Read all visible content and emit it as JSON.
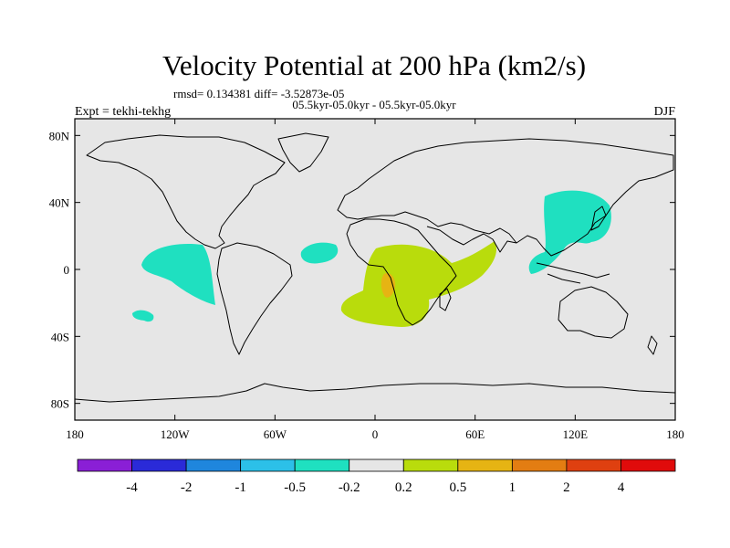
{
  "chart_data": {
    "type": "heatmap",
    "title": "Velocity Potential at 200 hPa (km2/s)",
    "stats": "rmsd= 0.134381 diff= -3.52873e-05",
    "subtitle": "05.5kyr-05.0kyr - 05.5kyr-05.0kyr",
    "left_label": "Expt = tekhi-tekhg",
    "right_label": "DJF",
    "x_axis": {
      "range": [
        -180,
        180
      ],
      "ticks": [
        -180,
        -120,
        -60,
        0,
        60,
        120,
        180
      ],
      "tick_labels": [
        "180",
        "120W",
        "60W",
        "0",
        "60E",
        "120E",
        "180"
      ]
    },
    "y_axis": {
      "range": [
        -90,
        90
      ],
      "ticks": [
        80,
        40,
        0,
        -40,
        -80
      ],
      "tick_labels": [
        "80N",
        "40N",
        "0",
        "40S",
        "80S"
      ]
    },
    "colorbar": {
      "boundaries": [
        "-4",
        "-2",
        "-1",
        "-0.5",
        "-0.2",
        "0.2",
        "0.5",
        "1",
        "2",
        "4"
      ],
      "colors": [
        "#8a1fd6",
        "#2a2ad8",
        "#1f86dd",
        "#2cc0e8",
        "#1fe0c0",
        "#e6e6e6",
        "#b9dc0c",
        "#e6b413",
        "#e37d12",
        "#df4010",
        "#e00b0b"
      ]
    },
    "regions": [
      {
        "name": "central-pacific-negative",
        "bin": "-0.5 to -0.2",
        "lon_range": [
          -143,
          -108
        ],
        "lat_range": [
          -19,
          11
        ]
      },
      {
        "name": "south-pacific-negative",
        "bin": "-0.5 to -0.2",
        "lon_range": [
          -148,
          -136
        ],
        "lat_range": [
          -31,
          -25
        ]
      },
      {
        "name": "tropical-atlantic-negative",
        "bin": "-0.5 to -0.2",
        "lon_range": [
          -45,
          -20
        ],
        "lat_range": [
          3,
          13
        ]
      },
      {
        "name": "east-asia-negative",
        "bin": "-0.5 to -0.2",
        "lon_range": [
          95,
          147
        ],
        "lat_range": [
          -1,
          48
        ]
      },
      {
        "name": "africa-indian-ocean-positive",
        "bin": "0.2 to 0.5",
        "lon_range": [
          -20,
          75
        ],
        "lat_range": [
          -33,
          17
        ]
      },
      {
        "name": "congo-positive-core",
        "bin": "0.5 to 1",
        "lon_range": [
          8,
          15
        ],
        "lat_range": [
          -16,
          -3
        ]
      }
    ]
  }
}
